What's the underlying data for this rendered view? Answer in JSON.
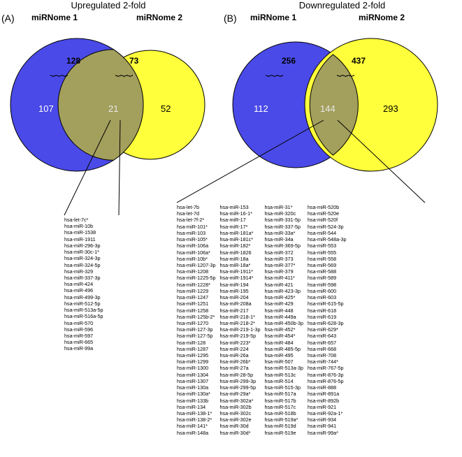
{
  "panelA": {
    "letter": "(A)",
    "title": "Upregulated 2-fold",
    "set1_label": "miRNome 1",
    "set2_label": "miRNome 2",
    "set1_total": "128",
    "set2_total": "73",
    "set1_only": "107",
    "overlap": "21",
    "set2_only": "52",
    "circle1_fill": "#4a4ae8",
    "circle2_fill": "#ffff3b",
    "overlap_fill": "#a39f5d",
    "genes": [
      "hsa-let-7c*",
      "hsa-miR-10b",
      "hsa-miR-1538",
      "hsa-miR-1911",
      "hsa-miR-296-3p",
      "hsa-miR-30c-1*",
      "hsa-miR-324-3p",
      "hsa-miR-324-5p",
      "hsa-miR-329",
      "hsa-miR-337-3p",
      "hsa-miR-424",
      "hsa-miR-496",
      "hsa-miR-499-3p",
      "hsa-miR-512-5p",
      "hsa-miR-513a-5p",
      "hsa-miR-516a-5p",
      "hsa-miR-570",
      "hsa-miR-596",
      "hsa-miR-597",
      "hsa-miR-665",
      "hsa-miR-99a"
    ]
  },
  "panelB": {
    "letter": "(B)",
    "title": "Downregulated 2-fold",
    "set1_label": "miRNome 1",
    "set2_label": "miRNome 2",
    "set1_total": "256",
    "set2_total": "437",
    "set1_only": "112",
    "overlap": "144",
    "set2_only": "293",
    "circle1_fill": "#4a4ae8",
    "circle2_fill": "#ffff3b",
    "overlap_fill": "#a39f5d",
    "gene_columns": [
      [
        "hsa-let-7b",
        "hsa-let-7d",
        "hsa-let-7f-2*",
        "hsa-miR-101*",
        "hsa-miR-103",
        "hsa-miR-105*",
        "hsa-miR-106a",
        "hsa-miR-106a*",
        "hsa-miR-10b*",
        "hsa-miR-1207-3p",
        "hsa-miR-1208",
        "hsa-miR-1225-5p",
        "hsa-miR-1228*",
        "hsa-miR-1229",
        "hsa-miR-1247",
        "hsa-miR-1251",
        "hsa-miR-1258",
        "hsa-miR-125b-2*",
        "hsa-miR-1270",
        "hsa-miR-127-3p",
        "hsa-miR-127-5p",
        "hsa-miR-128",
        "hsa-miR-1287",
        "hsa-miR-1295",
        "hsa-miR-1299",
        "hsa-miR-1300",
        "hsa-miR-1304",
        "hsa-miR-1307",
        "hsa-miR-130a",
        "hsa-miR-130a*",
        "hsa-miR-133b",
        "hsa-miR-134",
        "hsa-miR-138-1*",
        "hsa-miR-138-2*",
        "hsa-miR-141*",
        "hsa-miR-148a"
      ],
      [
        "hsa-miR-153",
        "hsa-miR-16-1*",
        "hsa-miR-17",
        "hsa-miR-17*",
        "hsa-miR-181a*",
        "hsa-miR-181c*",
        "hsa-miR-182*",
        "hsa-miR-1826",
        "hsa-miR-18a",
        "hsa-miR-18a*",
        "hsa-miR-1911*",
        "hsa-miR-1914*",
        "hsa-miR-194",
        "hsa-miR-195",
        "hsa-miR-204",
        "hsa-miR-208a",
        "hsa-miR-217",
        "hsa-miR-218-1*",
        "hsa-miR-218-2*",
        "hsa-miR-219-1-3p",
        "hsa-miR-219-5p",
        "hsa-miR-223*",
        "hsa-miR-224",
        "hsa-miR-26a",
        "hsa-miR-26b*",
        "hsa-miR-27a",
        "hsa-miR-28-5p",
        "hsa-miR-299-3p",
        "hsa-miR-299-5p",
        "hsa-miR-29a*",
        "hsa-miR-302a*",
        "hsa-miR-302b",
        "hsa-miR-302c",
        "hsa-miR-302e",
        "hsa-miR-30d",
        "hsa-miR-30d*"
      ],
      [
        "hsa-miR-31*",
        "hsa-miR-320c",
        "hsa-miR-331-5p",
        "hsa-miR-337-5p",
        "hsa-miR-33a*",
        "hsa-miR-34a",
        "hsa-miR-369-5p",
        "hsa-miR-372",
        "hsa-miR-373",
        "hsa-miR-377*",
        "hsa-miR-379",
        "hsa-miR-411*",
        "hsa-miR-421",
        "hsa-miR-423-3p",
        "hsa-miR-425*",
        "hsa-miR-429",
        "hsa-miR-448",
        "hsa-miR-449a",
        "hsa-miR-450b-3p",
        "hsa-miR-452*",
        "hsa-miR-454*",
        "hsa-miR-484",
        "hsa-miR-485-5p",
        "hsa-miR-495",
        "hsa-miR-507",
        "hsa-miR-513a-3p",
        "hsa-miR-513c",
        "hsa-miR-514",
        "hsa-miR-515-3p",
        "hsa-miR-517a",
        "hsa-miR-517b",
        "hsa-miR-517c",
        "hsa-miR-518b",
        "hsa-miR-519a*",
        "hsa-miR-519d",
        "hsa-miR-519e"
      ],
      [
        "hsa-miR-520b",
        "hsa-miR-520e",
        "hsa-miR-520f",
        "hsa-miR-524-3p",
        "hsa-miR-544",
        "hsa-miR-548a-3p",
        "hsa-miR-553",
        "hsa-miR-555",
        "hsa-miR-558",
        "hsa-miR-569",
        "hsa-miR-588",
        "hsa-miR-589",
        "hsa-miR-598",
        "hsa-miR-600",
        "hsa-miR-603",
        "hsa-miR-615-5p",
        "hsa-miR-618",
        "hsa-miR-619",
        "hsa-miR-628-3p",
        "hsa-miR-629*",
        "hsa-miR-643",
        "hsa-miR-657",
        "hsa-miR-668",
        "hsa-miR-708",
        "hsa-miR-744*",
        "hsa-miR-767-5p",
        "hsa-miR-876-3p",
        "hsa-miR-876-5p",
        "hsa-miR-888",
        "hsa-miR-891a",
        "hsa-miR-892b",
        "hsa-miR-921",
        "hsa-miR-92a-1*",
        "hsa-miR-934",
        "hsa-miR-941",
        "hsa-miR-99a*"
      ]
    ]
  }
}
